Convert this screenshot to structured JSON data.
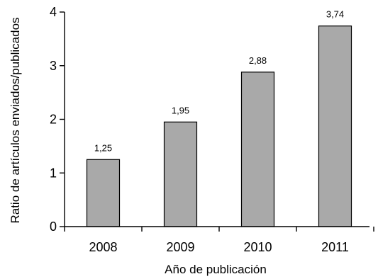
{
  "chart_data": {
    "type": "bar",
    "categories": [
      "2008",
      "2009",
      "2010",
      "2011"
    ],
    "values": [
      1.25,
      1.95,
      2.88,
      3.74
    ],
    "value_labels": [
      "1,25",
      "1,95",
      "2,88",
      "3,74"
    ],
    "xlabel": "Año de publicación",
    "ylabel": "Ratio de artículos enviados/publicados",
    "ylim": [
      0,
      4
    ],
    "yticks": [
      0,
      1,
      2,
      3,
      4
    ],
    "grid": false,
    "bar_color": "#a9a9a9",
    "bar_edge_color": "#000000"
  }
}
